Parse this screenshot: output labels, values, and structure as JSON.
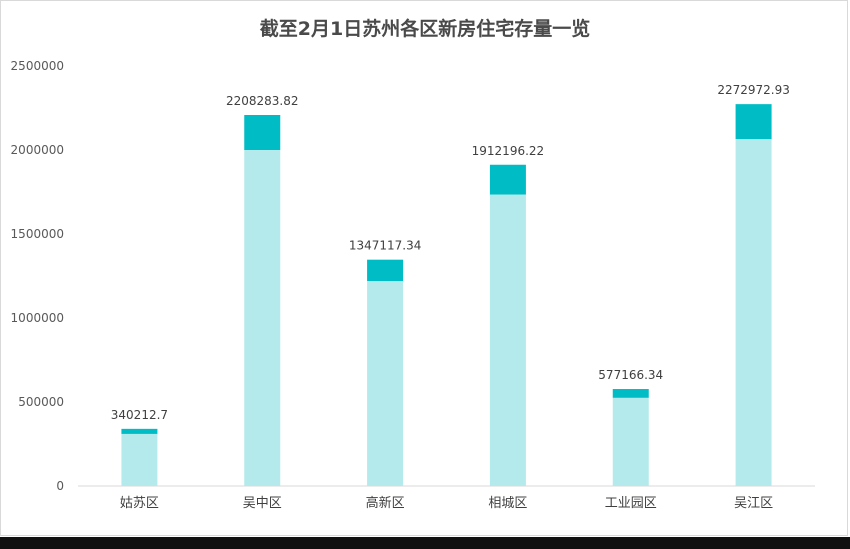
{
  "chart_data": {
    "type": "bar",
    "title": "截至2月1日苏州各区新房住宅存量一览",
    "categories": [
      "姑苏区",
      "吴中区",
      "高新区",
      "相城区",
      "工业园区",
      "吴江区"
    ],
    "totals": [
      340212.7,
      2208283.82,
      1347117.34,
      1912196.22,
      577166.34,
      2272972.93
    ],
    "total_labels": [
      "340212.7",
      "2208283.82",
      "1347117.34",
      "1912196.22",
      "577166.34",
      "2272972.93"
    ],
    "series": [
      {
        "values": [
          310000,
          2000000,
          1220000,
          1735000,
          525000,
          2065000
        ],
        "color": "#b4eaec"
      },
      {
        "values": [
          30212.7,
          208283.82,
          127117.34,
          177196.22,
          52166.34,
          207972.93
        ],
        "color": "#00bcc4"
      }
    ],
    "ylim": [
      0,
      2500000
    ],
    "yticks": [
      "0",
      "500000",
      "1000000",
      "1500000",
      "2000000",
      "2500000"
    ],
    "xlabel": "",
    "ylabel": "",
    "grid": false,
    "legend": "none"
  }
}
